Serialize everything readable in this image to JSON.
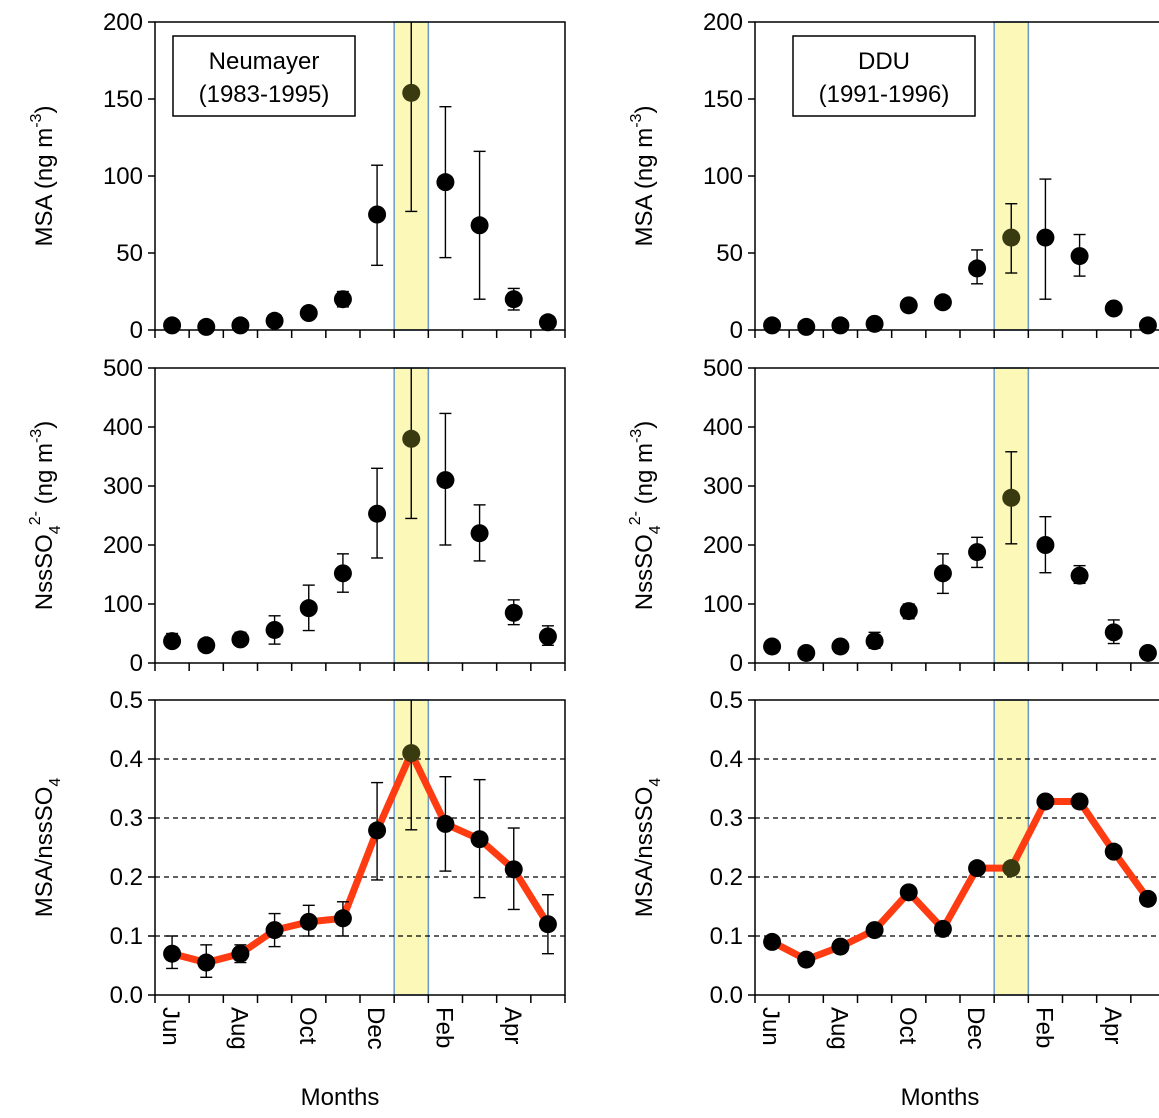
{
  "chart_data": [
    {
      "type": "scatter",
      "station": {
        "name": "Neumayer",
        "period": "(1983-1995)"
      },
      "ylabel": {
        "main": "MSA (ng m",
        "sup": "-3",
        "end": ")"
      },
      "yticks": [
        "0",
        "50",
        "100",
        "150",
        "200"
      ],
      "ylim": [
        0,
        200
      ],
      "x": [
        1,
        2,
        3,
        4,
        5,
        6,
        7,
        8,
        9,
        10,
        11,
        12
      ],
      "values": [
        3,
        2,
        3,
        6,
        11,
        20,
        75,
        154,
        96,
        68,
        20,
        5
      ],
      "err_low": [
        3,
        2,
        3,
        6,
        11,
        15,
        42,
        77,
        47,
        20,
        13,
        5
      ],
      "err_high": [
        3,
        2,
        3,
        6,
        11,
        25,
        107,
        210,
        145,
        116,
        27,
        5
      ],
      "highlight_month": 8
    },
    {
      "type": "scatter",
      "station": {
        "name": "DDU",
        "period": "(1991-1996)"
      },
      "ylabel": {
        "main": "MSA (ng m",
        "sup": "-3",
        "end": ")"
      },
      "yticks": [
        "0",
        "50",
        "100",
        "150",
        "200"
      ],
      "ylim": [
        0,
        200
      ],
      "x": [
        1,
        2,
        3,
        4,
        5,
        6,
        7,
        8,
        9,
        10,
        11,
        12
      ],
      "values": [
        3,
        2,
        3,
        4,
        16,
        18,
        40,
        60,
        60,
        48,
        14,
        3
      ],
      "err_low": [
        3,
        2,
        3,
        4,
        16,
        18,
        30,
        37,
        20,
        35,
        14,
        3
      ],
      "err_high": [
        3,
        2,
        3,
        4,
        16,
        18,
        52,
        82,
        98,
        62,
        14,
        3
      ],
      "highlight_month": 8
    },
    {
      "type": "scatter",
      "ylabel": {
        "main": "NssSO",
        "sub": "4",
        "sup": "2-",
        "end": " (ng m",
        "sup2": "-3",
        "end2": ")"
      },
      "yticks": [
        "0",
        "100",
        "200",
        "300",
        "400",
        "500"
      ],
      "ylim": [
        0,
        500
      ],
      "x": [
        1,
        2,
        3,
        4,
        5,
        6,
        7,
        8,
        9,
        10,
        11,
        12
      ],
      "values": [
        37,
        30,
        40,
        56,
        93,
        152,
        253,
        380,
        310,
        220,
        85,
        45
      ],
      "err_low": [
        27,
        20,
        30,
        32,
        55,
        120,
        178,
        245,
        200,
        173,
        65,
        30
      ],
      "err_high": [
        50,
        40,
        52,
        80,
        132,
        185,
        330,
        520,
        423,
        268,
        107,
        63
      ],
      "highlight_month": 8
    },
    {
      "type": "scatter",
      "ylabel": {
        "main": "NssSO",
        "sub": "4",
        "sup": "2-",
        "end": " (ng m",
        "sup2": "-3",
        "end2": ")"
      },
      "yticks": [
        "0",
        "100",
        "200",
        "300",
        "400",
        "500"
      ],
      "ylim": [
        0,
        500
      ],
      "x": [
        1,
        2,
        3,
        4,
        5,
        6,
        7,
        8,
        9,
        10,
        11,
        12
      ],
      "values": [
        28,
        17,
        28,
        37,
        88,
        152,
        188,
        280,
        200,
        148,
        52,
        17
      ],
      "err_low": [
        20,
        12,
        20,
        25,
        75,
        118,
        162,
        202,
        153,
        135,
        33,
        17
      ],
      "err_high": [
        37,
        22,
        36,
        52,
        100,
        185,
        213,
        358,
        248,
        165,
        73,
        17
      ],
      "highlight_month": 8
    },
    {
      "type": "line",
      "ylabel": {
        "main": "MSA/nssSO",
        "sub": "4"
      },
      "yticks": [
        "0.0",
        "0.1",
        "0.2",
        "0.3",
        "0.4",
        "0.5"
      ],
      "ylim": [
        0,
        0.5
      ],
      "dashed_grid": [
        0.1,
        0.2,
        0.3,
        0.4
      ],
      "x": [
        1,
        2,
        3,
        4,
        5,
        6,
        7,
        8,
        9,
        10,
        11,
        12
      ],
      "values": [
        0.07,
        0.055,
        0.07,
        0.11,
        0.124,
        0.13,
        0.279,
        0.41,
        0.29,
        0.264,
        0.213,
        0.12
      ],
      "err_low": [
        0.045,
        0.03,
        0.055,
        0.082,
        0.1,
        0.1,
        0.195,
        0.28,
        0.21,
        0.165,
        0.145,
        0.07
      ],
      "err_high": [
        0.1,
        0.085,
        0.085,
        0.138,
        0.152,
        0.158,
        0.36,
        0.55,
        0.37,
        0.365,
        0.283,
        0.17
      ],
      "highlight_month": 8,
      "xticklabels": [
        "Jun",
        "Aug",
        "Oct",
        "Dec",
        "Feb",
        "Apr"
      ],
      "xticklabel_months": [
        1,
        3,
        5,
        7,
        9,
        11
      ],
      "xlabel": "Months"
    },
    {
      "type": "line",
      "ylabel": {
        "main": "MSA/nssSO",
        "sub": "4"
      },
      "yticks": [
        "0.0",
        "0.1",
        "0.2",
        "0.3",
        "0.4",
        "0.5"
      ],
      "ylim": [
        0,
        0.5
      ],
      "dashed_grid": [
        0.1,
        0.2,
        0.3,
        0.4
      ],
      "x": [
        1,
        2,
        3,
        4,
        5,
        6,
        7,
        8,
        9,
        10,
        11,
        12
      ],
      "values": [
        0.09,
        0.06,
        0.082,
        0.11,
        0.174,
        0.112,
        0.215,
        0.215,
        0.328,
        0.328,
        0.243,
        0.163
      ],
      "highlight_month": 8,
      "xticklabels": [
        "Jun",
        "Aug",
        "Oct",
        "Dec",
        "Feb",
        "Apr"
      ],
      "xticklabel_months": [
        1,
        3,
        5,
        7,
        9,
        11
      ],
      "xlabel": "Months"
    }
  ],
  "colors": {
    "highlight_fill": "#fbf8b8",
    "highlight_stroke": "#6a99c8",
    "line": "#ff3b12",
    "marker": "#000000",
    "marker_highlighted": "#3a3a10",
    "axis": "#000000"
  }
}
